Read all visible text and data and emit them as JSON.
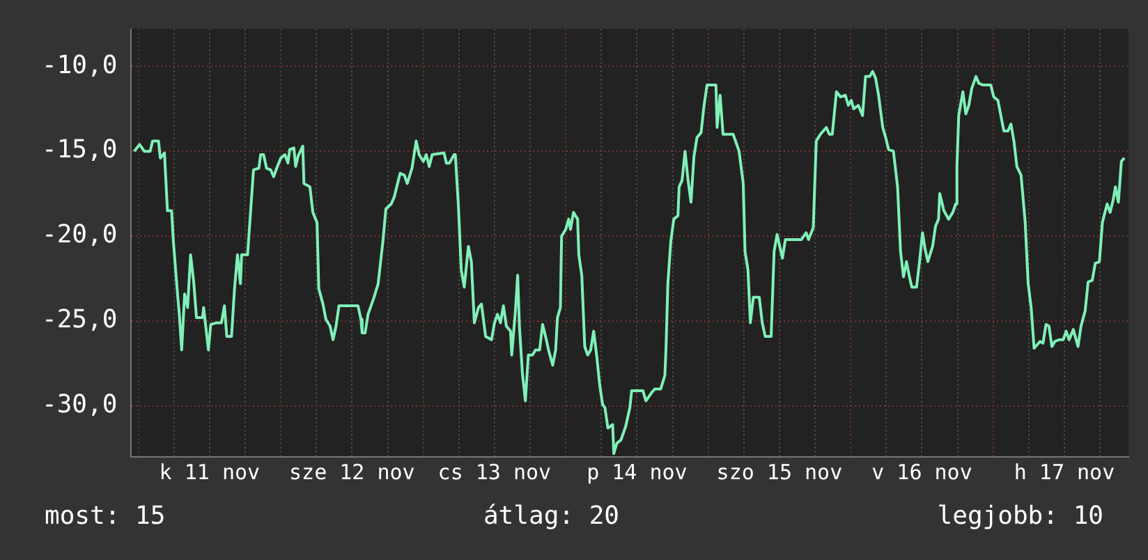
{
  "chart_data": {
    "type": "line",
    "x": [
      "--11-10T23:18",
      "--11-11T00:12",
      "--11-11T01:00",
      "--11-11T02:00",
      "--11-11T02:24",
      "--11-11T03:24",
      "--11-11T03:42",
      "--11-11T04:24",
      "--11-11T04:54",
      "--11-11T05:36",
      "--11-11T05:54",
      "--11-11T06:36",
      "--11-11T06:54",
      "--11-11T07:18",
      "--11-11T07:48",
      "--11-11T08:18",
      "--11-11T08:48",
      "--11-11T09:18",
      "--11-11T09:48",
      "--11-11T10:48",
      "--11-11T11:00",
      "--11-11T11:48",
      "--11-11T12:12",
      "--11-11T13:12",
      "--11-11T14:00",
      "--11-11T14:30",
      "--11-11T14:54",
      "--11-11T15:42",
      "--11-11T16:12",
      "--11-11T16:42",
      "--11-11T17:12",
      "--11-11T17:24",
      "--11-11T18:24",
      "--11-11T18:54",
      "--11-11T19:24",
      "--11-11T20:18",
      "--11-11T20:36",
      "--11-11T21:06",
      "--11-11T21:36",
      "--11-11T22:18",
      "--11-11T22:48",
      "--11-11T23:18",
      "--11-12T00:00",
      "--11-12T00:42",
      "--11-12T01:12",
      "--11-12T01:30",
      "--11-12T02:12",
      "--11-12T02:30",
      "--11-12T02:54",
      "--11-12T03:42",
      "--11-12T03:54",
      "--11-12T04:54",
      "--11-12T05:24",
      "--11-12T06:06",
      "--11-12T06:24",
      "--11-12T07:06",
      "--11-12T07:36",
      "--11-12T08:18",
      "--11-12T08:48",
      "--11-12T09:18",
      "--11-12T09:48",
      "--11-12T11:18",
      "--11-12T12:18",
      "--11-12T13:00",
      "--11-12T13:30",
      "--11-12T13:42",
      "--11-12T14:12",
      "--11-12T14:42",
      "--11-12T15:42",
      "--11-12T16:24",
      "--11-12T17:12",
      "--11-12T17:42",
      "--11-12T18:36",
      "--11-12T19:06",
      "--11-12T20:06",
      "--11-12T20:48",
      "--11-12T21:18",
      "--11-12T22:06",
      "--11-12T22:48",
      "--11-12T23:18",
      "--11-13T00:00",
      "--11-13T00:30",
      "--11-13T01:00",
      "--11-13T01:30",
      "--11-13T03:30",
      "--11-13T03:54",
      "--11-13T04:24",
      "--11-13T05:12",
      "--11-13T05:24",
      "--11-13T05:54",
      "--11-13T06:24",
      "--11-13T06:54",
      "--11-13T07:36",
      "--11-13T08:06",
      "--11-13T08:36",
      "--11-13T09:18",
      "--11-13T09:48",
      "--11-13T10:30",
      "--11-13T11:30",
      "--11-13T12:00",
      "--11-13T12:30",
      "--11-13T13:00",
      "--11-13T13:30",
      "--11-13T14:00",
      "--11-13T14:42",
      "--11-13T14:54",
      "--11-13T15:30",
      "--11-13T15:54",
      "--11-13T16:12",
      "--11-13T16:42",
      "--11-13T17:12",
      "--11-13T17:42",
      "--11-13T18:24",
      "--11-13T18:54",
      "--11-13T19:36",
      "--11-13T20:06",
      "--11-13T20:36",
      "--11-13T21:06",
      "--11-13T21:48",
      "--11-13T22:18",
      "--11-13T22:36",
      "--11-13T23:06",
      "--11-13T23:18",
      "--11-14T00:00",
      "--11-14T00:30",
      "--11-14T00:48",
      "--11-14T01:18",
      "--11-14T02:00",
      "--11-14T02:12",
      "--11-14T02:42",
      "--11-14T03:12",
      "--11-14T03:42",
      "--11-14T04:12",
      "--11-14T04:42",
      "--11-14T05:12",
      "--11-14T05:42",
      "--11-14T06:12",
      "--11-14T06:36",
      "--11-14T07:06",
      "--11-14T07:54",
      "--11-14T08:06",
      "--11-14T08:36",
      "--11-14T09:18",
      "--11-14T10:06",
      "--11-14T10:48",
      "--11-14T11:06",
      "--11-14T12:00",
      "--11-14T13:00",
      "--11-14T13:30",
      "--11-14T14:30",
      "--11-14T15:00",
      "--11-14T16:00",
      "--11-14T16:42",
      "--11-14T16:54",
      "--11-14T17:12",
      "--11-14T17:42",
      "--11-14T18:12",
      "--11-14T18:54",
      "--11-14T19:06",
      "--11-14T19:36",
      "--11-14T20:06",
      "--11-14T20:36",
      "--11-14T21:06",
      "--11-14T21:36",
      "--11-14T22:06",
      "--11-14T22:48",
      "--11-14T23:18",
      "--11-14T23:48",
      "--11-15T01:18",
      "--11-15T01:30",
      "--11-15T02:00",
      "--11-15T02:30",
      "--11-15T04:12",
      "--11-15T05:12",
      "--11-15T05:54",
      "--11-15T06:12",
      "--11-15T06:42",
      "--11-15T07:06",
      "--11-15T07:36",
      "--11-15T08:36",
      "--11-15T09:06",
      "--11-15T09:36",
      "--11-15T10:36",
      "--11-15T11:06",
      "--11-15T11:36",
      "--11-15T12:30",
      "--11-15T13:00",
      "--11-15T13:48",
      "--11-15T15:42",
      "--11-15T16:30",
      "--11-15T16:54",
      "--11-15T17:42",
      "--11-15T18:12",
      "--11-15T18:54",
      "--11-15T19:54",
      "--11-15T20:24",
      "--11-15T20:54",
      "--11-15T21:36",
      "--11-15T22:18",
      "--11-15T23:06",
      "--11-15T23:36",
      "--11-16T00:06",
      "--11-16T00:30",
      "--11-16T01:18",
      "--11-16T02:00",
      "--11-16T02:30",
      "--11-16T03:12",
      "--11-16T03:42",
      "--11-16T04:12",
      "--11-16T04:42",
      "--11-16T05:24",
      "--11-16T05:54",
      "--11-16T06:24",
      "--11-16T07:12",
      "--11-16T07:54",
      "--11-16T08:24",
      "--11-16T08:54",
      "--11-16T09:24",
      "--11-16T09:54",
      "--11-16T10:18",
      "--11-16T11:06",
      "--11-16T11:36",
      "--11-16T12:06",
      "--11-16T12:30",
      "--11-16T13:00",
      "--11-16T13:48",
      "--11-16T14:18",
      "--11-16T14:48",
      "--11-16T15:00",
      "--11-16T15:30",
      "--11-16T15:42",
      "--11-16T16:30",
      "--11-16T17:12",
      "--11-16T17:42",
      "--11-16T17:54",
      "--11-16T18:12",
      "--11-16T18:54",
      "--11-16T19:24",
      "--11-16T19:54",
      "--11-16T20:24",
      "--11-16T21:06",
      "--11-16T21:36",
      "--11-16T22:18",
      "--11-16T23:36",
      "--11-17T00:06",
      "--11-17T00:48",
      "--11-17T01:18",
      "--11-17T01:48",
      "--11-17T02:30",
      "--11-17T03:00",
      "--11-17T03:30",
      "--11-17T04:00",
      "--11-17T04:42",
      "--11-17T05:24",
      "--11-17T05:54",
      "--11-17T06:24",
      "--11-17T06:54",
      "--11-17T07:54",
      "--11-17T08:24",
      "--11-17T08:54",
      "--11-17T09:24",
      "--11-17T09:54",
      "--11-17T10:24",
      "--11-17T11:06",
      "--11-17T11:48",
      "--11-17T12:18",
      "--11-17T12:48",
      "--11-17T13:30",
      "--11-17T14:18",
      "--11-17T14:48",
      "--11-17T15:30",
      "--11-17T16:00",
      "--11-17T16:42",
      "--11-17T17:12",
      "--11-17T17:54",
      "--11-17T18:24",
      "--11-17T19:12",
      "--11-17T19:42",
      "--11-17T20:12",
      "--11-17T20:36",
      "--11-17T21:06",
      "--11-17T21:36",
      "--11-17T22:06"
    ],
    "series": [
      {
        "color": "#7ff0b8",
        "values": [
          -15.0,
          -14.6,
          -15.0,
          -15.0,
          -14.4,
          -14.4,
          -15.4,
          -15.1,
          -18.5,
          -18.5,
          -20.3,
          -23.4,
          -24.6,
          -26.7,
          -23.4,
          -24.2,
          -21.1,
          -22.6,
          -24.8,
          -24.8,
          -24.2,
          -26.7,
          -25.2,
          -25.1,
          -25.1,
          -24.1,
          -25.9,
          -25.9,
          -23.1,
          -21.1,
          -22.8,
          -21.1,
          -21.1,
          -18.6,
          -16.1,
          -16.0,
          -15.2,
          -15.2,
          -16.0,
          -16.1,
          -16.5,
          -16.0,
          -15.4,
          -15.2,
          -15.7,
          -14.9,
          -14.8,
          -15.9,
          -15.3,
          -14.7,
          -16.9,
          -17.1,
          -18.6,
          -19.2,
          -23.1,
          -24.0,
          -24.9,
          -25.3,
          -26.1,
          -25.3,
          -24.1,
          -24.1,
          -24.1,
          -24.1,
          -24.9,
          -25.7,
          -25.7,
          -24.6,
          -23.6,
          -22.8,
          -20.3,
          -18.4,
          -18.1,
          -17.7,
          -16.3,
          -16.4,
          -16.9,
          -16.0,
          -14.4,
          -15.2,
          -15.6,
          -15.2,
          -15.9,
          -15.2,
          -15.1,
          -15.7,
          -15.7,
          -15.2,
          -15.2,
          -18.1,
          -22.0,
          -23.0,
          -20.6,
          -21.5,
          -25.1,
          -24.2,
          -24.0,
          -25.9,
          -26.1,
          -25.1,
          -24.6,
          -25.1,
          -24.1,
          -25.3,
          -25.6,
          -27.0,
          -24.5,
          -22.3,
          -25.3,
          -28.1,
          -29.7,
          -27.0,
          -27.0,
          -26.7,
          -26.7,
          -25.2,
          -25.9,
          -26.7,
          -27.6,
          -26.7,
          -24.8,
          -24.2,
          -20.0,
          -19.6,
          -19.0,
          -19.6,
          -18.6,
          -19.0,
          -21.1,
          -22.3,
          -26.5,
          -27.0,
          -26.7,
          -25.6,
          -27.0,
          -28.7,
          -29.9,
          -30.1,
          -31.3,
          -31.1,
          -32.8,
          -32.2,
          -32.0,
          -31.2,
          -30.1,
          -29.1,
          -29.1,
          -29.1,
          -29.7,
          -29.2,
          -29.0,
          -29.0,
          -28.2,
          -26.5,
          -22.8,
          -20.3,
          -19.0,
          -18.8,
          -17.1,
          -16.7,
          -15.0,
          -16.7,
          -18.0,
          -15.3,
          -14.2,
          -13.9,
          -12.3,
          -11.1,
          -11.1,
          -13.6,
          -11.7,
          -14.0,
          -14.0,
          -15.0,
          -16.9,
          -20.9,
          -22.0,
          -25.1,
          -23.6,
          -23.6,
          -25.1,
          -25.9,
          -25.9,
          -20.9,
          -19.9,
          -21.3,
          -20.2,
          -20.2,
          -20.2,
          -19.8,
          -20.2,
          -19.5,
          -14.4,
          -14.0,
          -13.6,
          -14.0,
          -14.0,
          -11.5,
          -11.8,
          -11.7,
          -12.3,
          -12.0,
          -12.5,
          -12.3,
          -12.9,
          -10.6,
          -10.6,
          -10.3,
          -10.7,
          -11.7,
          -13.6,
          -14.2,
          -14.9,
          -15.0,
          -17.1,
          -20.9,
          -22.4,
          -21.5,
          -22.4,
          -23.0,
          -23.0,
          -21.5,
          -19.8,
          -20.7,
          -21.5,
          -20.6,
          -19.4,
          -19.0,
          -17.5,
          -18.2,
          -18.5,
          -19.0,
          -18.6,
          -18.1,
          -15.9,
          -12.9,
          -11.5,
          -12.8,
          -12.3,
          -11.3,
          -10.6,
          -11.0,
          -11.1,
          -11.1,
          -11.8,
          -12.0,
          -12.9,
          -13.8,
          -13.8,
          -13.4,
          -14.4,
          -15.9,
          -16.4,
          -19.2,
          -22.8,
          -24.2,
          -26.6,
          -26.2,
          -26.3,
          -25.2,
          -25.3,
          -26.5,
          -26.2,
          -26.1,
          -26.1,
          -25.6,
          -26.1,
          -25.5,
          -26.5,
          -25.3,
          -24.4,
          -22.7,
          -22.6,
          -21.6,
          -21.5,
          -19.2,
          -18.1,
          -18.6,
          -17.9,
          -17.1,
          -18.0,
          -15.6,
          -15.4
        ]
      }
    ],
    "xlim": [
      "--11-10T22:48",
      "--11-17T22:48"
    ],
    "xticks": [
      {
        "value": "--11-11T00:00",
        "label": null
      },
      {
        "value": "--11-11T06:00",
        "label": null
      },
      {
        "value": "--11-11T12:00",
        "label": "k 11 nov"
      },
      {
        "value": "--11-11T18:00",
        "label": null
      },
      {
        "value": "--11-12T00:00",
        "label": null
      },
      {
        "value": "--11-12T06:00",
        "label": null
      },
      {
        "value": "--11-12T12:00",
        "label": "sze 12 nov"
      },
      {
        "value": "--11-12T18:00",
        "label": null
      },
      {
        "value": "--11-13T00:00",
        "label": null
      },
      {
        "value": "--11-13T06:00",
        "label": null
      },
      {
        "value": "--11-13T12:00",
        "label": "cs 13 nov"
      },
      {
        "value": "--11-13T18:00",
        "label": null
      },
      {
        "value": "--11-14T00:00",
        "label": null
      },
      {
        "value": "--11-14T06:00",
        "label": null
      },
      {
        "value": "--11-14T12:00",
        "label": "p 14 nov"
      },
      {
        "value": "--11-14T18:00",
        "label": null
      },
      {
        "value": "--11-15T00:00",
        "label": null
      },
      {
        "value": "--11-15T06:00",
        "label": null
      },
      {
        "value": "--11-15T12:00",
        "label": "szo 15 nov"
      },
      {
        "value": "--11-15T18:00",
        "label": null
      },
      {
        "value": "--11-16T00:00",
        "label": null
      },
      {
        "value": "--11-16T06:00",
        "label": null
      },
      {
        "value": "--11-16T12:00",
        "label": "v 16 nov"
      },
      {
        "value": "--11-16T18:00",
        "label": null
      },
      {
        "value": "--11-17T00:00",
        "label": null
      },
      {
        "value": "--11-17T06:00",
        "label": null
      },
      {
        "value": "--11-17T12:00",
        "label": "h 17 nov"
      },
      {
        "value": "--11-17T18:00",
        "label": null
      }
    ],
    "ylim": [
      -33.0,
      -7.8
    ],
    "yticks": [
      {
        "value": -30,
        "label": "-30,0"
      },
      {
        "value": -25,
        "label": "-25,0"
      },
      {
        "value": -20,
        "label": "-20,0"
      },
      {
        "value": -15,
        "label": "-15,0"
      },
      {
        "value": -10,
        "label": "-10,0"
      }
    ],
    "grid": true,
    "legend": false,
    "marker": "none",
    "annotations": [
      "most: 15",
      "átlag: 20",
      "legjobb: 10"
    ]
  }
}
